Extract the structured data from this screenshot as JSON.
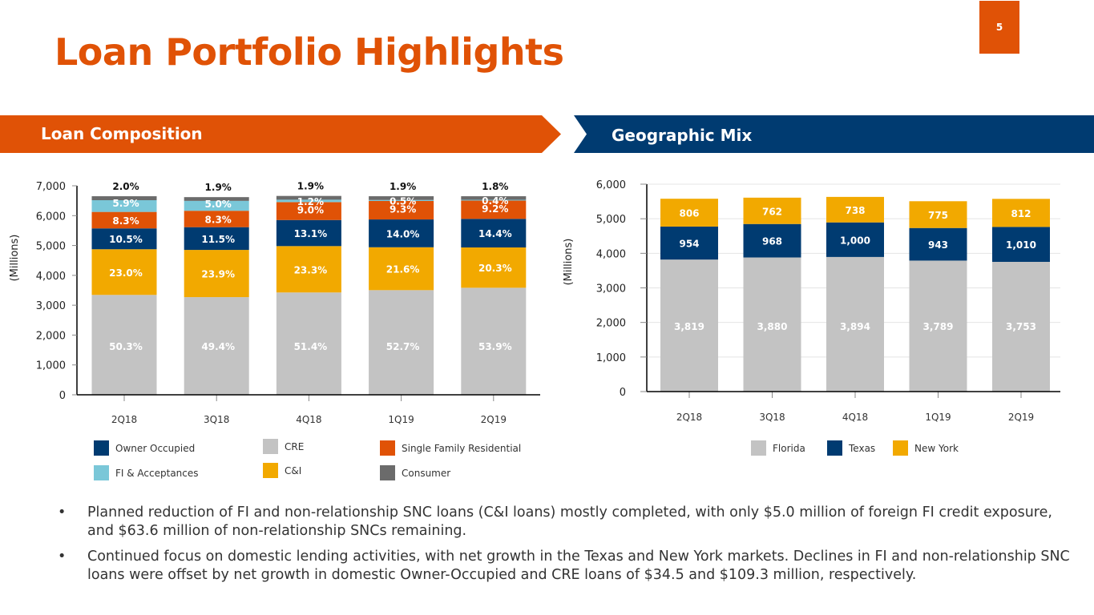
{
  "page": {
    "title": "Loan Portfolio Highlights",
    "page_number": "5",
    "brand_colors": {
      "orange": "#e05206",
      "navy": "#003b71"
    }
  },
  "sections": {
    "left_title": "Loan Composition",
    "right_title": "Geographic Mix"
  },
  "chart_data": [
    {
      "type": "bar",
      "stacked": true,
      "title": "Loan Composition",
      "ylabel": "(Millions)",
      "xlabel": "",
      "ylim": [
        0,
        7000
      ],
      "yticks": [
        "0",
        "1,000",
        "2,000",
        "3,000",
        "4,000",
        "5,000",
        "6,000",
        "7,000"
      ],
      "ytick_values": [
        0,
        1000,
        2000,
        3000,
        4000,
        5000,
        6000,
        7000
      ],
      "categories": [
        "2Q18",
        "3Q18",
        "4Q18",
        "1Q19",
        "2Q19"
      ],
      "totals": [
        6650,
        6620,
        6660,
        6650,
        6650
      ],
      "grid": false,
      "legend_position": "bottom",
      "top_labels": [
        "2.0%",
        "1.9%",
        "1.9%",
        "1.9%",
        "1.8%"
      ],
      "series": [
        {
          "name": "CRE",
          "color": "#c3c3c3",
          "values": [
            50.3,
            49.4,
            51.4,
            52.7,
            53.9
          ],
          "labels": [
            "50.3%",
            "49.4%",
            "51.4%",
            "52.7%",
            "53.9%"
          ]
        },
        {
          "name": "C&I",
          "color": "#f2a900",
          "values": [
            23.0,
            23.9,
            23.3,
            21.6,
            20.3
          ],
          "labels": [
            "23.0%",
            "23.9%",
            "23.3%",
            "21.6%",
            "20.3%"
          ]
        },
        {
          "name": "Owner Occupied",
          "color": "#003b71",
          "values": [
            10.5,
            11.5,
            13.1,
            14.0,
            14.4
          ],
          "labels": [
            "10.5%",
            "11.5%",
            "13.1%",
            "14.0%",
            "14.4%"
          ]
        },
        {
          "name": "Single Family Residential",
          "color": "#e05206",
          "values": [
            8.3,
            8.3,
            9.0,
            9.3,
            9.2
          ],
          "labels": [
            "8.3%",
            "8.3%",
            "9.0%",
            "9.3%",
            "9.2%"
          ]
        },
        {
          "name": "FI & Acceptances",
          "color": "#7ac7d8",
          "values": [
            5.9,
            5.0,
            1.2,
            0.5,
            0.4
          ],
          "labels": [
            "5.9%",
            "5.0%",
            "1.2%",
            "0.5%",
            "0.4%"
          ]
        },
        {
          "name": "Consumer",
          "color": "#6b6b6b",
          "values": [
            2.0,
            1.9,
            1.9,
            1.9,
            1.8
          ],
          "labels": [
            "2.0%",
            "1.9%",
            "1.9%",
            "1.9%",
            "1.8%"
          ]
        }
      ],
      "legend": [
        {
          "name": "Owner Occupied",
          "color": "#003b71"
        },
        {
          "name": "CRE",
          "color": "#c3c3c3"
        },
        {
          "name": "Single Family Residential",
          "color": "#e05206"
        },
        {
          "name": "FI & Acceptances",
          "color": "#7ac7d8"
        },
        {
          "name": "C&I",
          "color": "#f2a900"
        },
        {
          "name": "Consumer",
          "color": "#6b6b6b"
        }
      ]
    },
    {
      "type": "bar",
      "stacked": true,
      "title": "Geographic Mix",
      "ylabel": "(Millions)",
      "xlabel": "",
      "ylim": [
        0,
        6000
      ],
      "yticks": [
        "0",
        "1,000",
        "2,000",
        "3,000",
        "4,000",
        "5,000",
        "6,000"
      ],
      "ytick_values": [
        0,
        1000,
        2000,
        3000,
        4000,
        5000,
        6000
      ],
      "categories": [
        "2Q18",
        "3Q18",
        "4Q18",
        "1Q19",
        "2Q19"
      ],
      "grid": true,
      "legend_position": "bottom-right",
      "series": [
        {
          "name": "Florida",
          "color": "#c3c3c3",
          "values": [
            3819,
            3880,
            3894,
            3789,
            3753
          ],
          "labels": [
            "3,819",
            "3,880",
            "3,894",
            "3,789",
            "3,753"
          ]
        },
        {
          "name": "Texas",
          "color": "#003b71",
          "values": [
            954,
            968,
            1000,
            943,
            1010
          ],
          "labels": [
            "954",
            "968",
            "1,000",
            "943",
            "1,010"
          ]
        },
        {
          "name": "New York",
          "color": "#f2a900",
          "values": [
            806,
            762,
            738,
            775,
            812
          ],
          "labels": [
            "806",
            "762",
            "738",
            "775",
            "812"
          ]
        }
      ],
      "legend": [
        {
          "name": "Florida",
          "color": "#c3c3c3"
        },
        {
          "name": "Texas",
          "color": "#003b71"
        },
        {
          "name": "New York",
          "color": "#f2a900"
        }
      ]
    }
  ],
  "bullets": [
    "Planned reduction of FI and non-relationship SNC loans (C&I loans) mostly completed, with only $5.0 million of foreign FI credit exposure, and $63.6 million of non-relationship SNCs remaining.",
    "Continued focus on domestic lending activities, with net growth in the Texas and New York markets. Declines in FI and non-relationship SNC loans were offset by net growth in domestic Owner-Occupied and CRE loans of $34.5 and $109.3 million, respectively."
  ],
  "bullet_glyph": "•"
}
